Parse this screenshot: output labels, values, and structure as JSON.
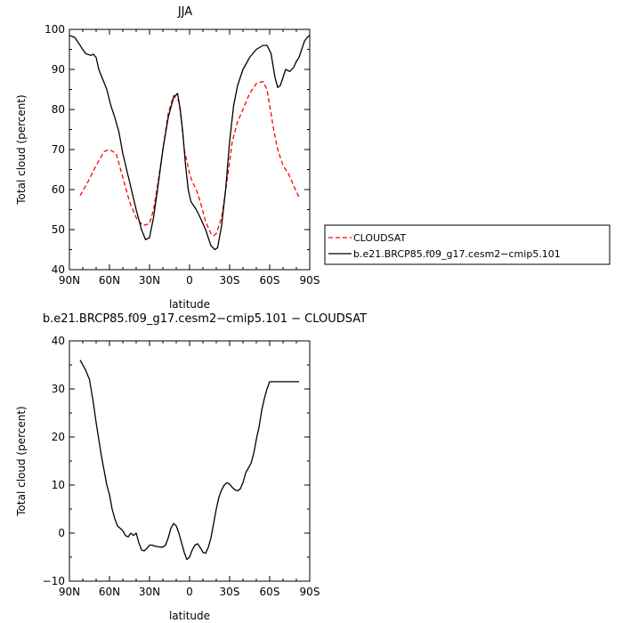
{
  "chart_data": [
    {
      "type": "line",
      "title": "JJA",
      "xlabel": "latitude",
      "ylabel": "Total cloud (percent)",
      "xlim": [
        90,
        -90
      ],
      "ylim": [
        40,
        100
      ],
      "xticks": [
        90,
        60,
        30,
        0,
        -30,
        -60,
        -90
      ],
      "xticklabels": [
        "90N",
        "60N",
        "30N",
        "0",
        "30S",
        "60S",
        "90S"
      ],
      "yticks": [
        40,
        50,
        60,
        70,
        80,
        90,
        100
      ],
      "yticklabels": [
        "40",
        "50",
        "60",
        "70",
        "80",
        "90",
        "100"
      ],
      "legend_position": "right",
      "series": [
        {
          "name": "CLOUDSAT",
          "color": "#ff0000",
          "dash": "dashed",
          "x": [
            82,
            76,
            70,
            64,
            60,
            55,
            50,
            45,
            40,
            35,
            30,
            27,
            24,
            20,
            16,
            12,
            8,
            6,
            4,
            2,
            0,
            -2,
            -5,
            -8,
            -12,
            -16,
            -18,
            -20,
            -24,
            -28,
            -32,
            -36,
            -40,
            -45,
            -50,
            -55,
            -58,
            -60,
            -63,
            -66,
            -70,
            -74,
            -78,
            -82
          ],
          "y": [
            58.5,
            62,
            66,
            69.5,
            70,
            69,
            63,
            57,
            53,
            51,
            51.5,
            55,
            61,
            70,
            79,
            83.5,
            82,
            77,
            70,
            67,
            64,
            62,
            60,
            57,
            52,
            49,
            48.5,
            49,
            53,
            62,
            72,
            77,
            80,
            84,
            86.5,
            87,
            85,
            81,
            75,
            70,
            66,
            64,
            61,
            58
          ]
        },
        {
          "name": "b.e21.BRCP85.f09_g17.cesm2−cmip5.101",
          "color": "#000000",
          "dash": "solid",
          "x": [
            90,
            86,
            82,
            78,
            74,
            72,
            70,
            68,
            65,
            62,
            59,
            56,
            53,
            50,
            45,
            40,
            36,
            33,
            30,
            27,
            24,
            20,
            16,
            12,
            9,
            7,
            5,
            3,
            1,
            -1,
            -3,
            -5,
            -8,
            -12,
            -16,
            -19,
            -21,
            -24,
            -27,
            -30,
            -33,
            -36,
            -40,
            -45,
            -50,
            -55,
            -58,
            -61,
            -64,
            -66,
            -68,
            -70,
            -72,
            -75,
            -78,
            -80,
            -82,
            -84,
            -86,
            -88,
            -90
          ],
          "y": [
            98.5,
            98,
            96,
            94,
            93.5,
            93.8,
            93,
            90,
            87.5,
            85,
            81,
            78,
            74.5,
            69,
            62,
            55,
            50,
            47.5,
            48,
            53,
            60,
            70,
            78,
            83,
            84,
            80,
            74,
            66,
            60,
            57,
            56,
            55,
            53,
            50,
            46,
            45,
            45.5,
            51,
            60,
            72,
            81,
            86,
            90,
            93,
            95,
            96,
            96,
            94,
            88,
            85.5,
            86,
            88,
            90,
            89.5,
            90.5,
            92,
            93,
            95,
            97,
            98,
            98.5
          ]
        }
      ]
    },
    {
      "type": "line",
      "title": "b.e21.BRCP85.f09_g17.cesm2−cmip5.101  −  CLOUDSAT",
      "xlabel": "latitude",
      "ylabel": "Total cloud (percent)",
      "xlim": [
        90,
        -90
      ],
      "ylim": [
        -10,
        40
      ],
      "xticks": [
        90,
        60,
        30,
        0,
        -30,
        -60,
        -90
      ],
      "xticklabels": [
        "90N",
        "60N",
        "30N",
        "0",
        "30S",
        "60S",
        "90S"
      ],
      "yticks": [
        -10,
        0,
        10,
        20,
        30,
        40
      ],
      "yticklabels": [
        "−10",
        "0",
        "10",
        "20",
        "30",
        "40"
      ],
      "series": [
        {
          "color": "#000000",
          "dash": "solid",
          "x": [
            82,
            78,
            75,
            72,
            70,
            68,
            66,
            64,
            62,
            60,
            58,
            56,
            54,
            52,
            50,
            48,
            46,
            44,
            42,
            40,
            38,
            36,
            34,
            32,
            30,
            28,
            26,
            24,
            22,
            20,
            18,
            16,
            14,
            12,
            10,
            8,
            6,
            4,
            2,
            0,
            -2,
            -4,
            -6,
            -8,
            -10,
            -12,
            -14,
            -16,
            -18,
            -20,
            -22,
            -24,
            -26,
            -28,
            -30,
            -32,
            -34,
            -36,
            -38,
            -40,
            -42,
            -44,
            -46,
            -48,
            -50,
            -52,
            -54,
            -56,
            -58,
            -60,
            -62,
            -64,
            -66,
            -68,
            -70,
            -72,
            -74,
            -76,
            -78,
            -80,
            -82
          ],
          "y": [
            36,
            34,
            32,
            27,
            23,
            19.5,
            16,
            13,
            10,
            8,
            5,
            3,
            1.5,
            1,
            0.5,
            -0.5,
            -0.8,
            0,
            -0.5,
            0,
            -2,
            -3.5,
            -3.7,
            -3.2,
            -2.5,
            -2.5,
            -2.7,
            -2.8,
            -2.9,
            -2.9,
            -2.5,
            -1,
            1,
            2,
            1.5,
            0,
            -2,
            -4,
            -5.5,
            -5,
            -3.5,
            -2.5,
            -2.2,
            -3,
            -4,
            -4.2,
            -3,
            -1,
            2,
            5,
            7.5,
            9,
            10,
            10.5,
            10.2,
            9.5,
            9,
            8.8,
            9.2,
            10.5,
            12.5,
            13.5,
            14.5,
            16.5,
            19.5,
            22,
            25.5,
            28,
            30,
            31.5,
            31.5,
            31.5,
            31.5,
            31.5,
            31.5,
            31.5,
            31.5,
            31.5,
            31.5,
            31.5,
            31.5
          ]
        }
      ]
    }
  ]
}
